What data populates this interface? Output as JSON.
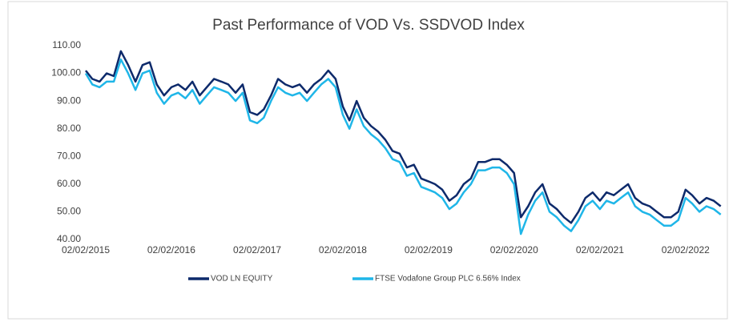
{
  "chart_data": {
    "type": "line",
    "title": "Past Performance of VOD Vs. SSDVOD Index",
    "x": [
      "2015-02-02",
      "2015-03-02",
      "2015-04-02",
      "2015-05-02",
      "2015-06-02",
      "2015-07-02",
      "2015-08-02",
      "2015-09-02",
      "2015-10-02",
      "2015-11-02",
      "2015-12-02",
      "2016-01-02",
      "2016-02-02",
      "2016-03-02",
      "2016-04-02",
      "2016-05-02",
      "2016-06-02",
      "2016-07-02",
      "2016-08-02",
      "2016-09-02",
      "2016-10-02",
      "2016-11-02",
      "2016-12-02",
      "2017-01-02",
      "2017-02-02",
      "2017-03-02",
      "2017-04-02",
      "2017-05-02",
      "2017-06-02",
      "2017-07-02",
      "2017-08-02",
      "2017-09-02",
      "2017-10-02",
      "2017-11-02",
      "2017-12-02",
      "2018-01-02",
      "2018-02-02",
      "2018-03-02",
      "2018-04-02",
      "2018-05-02",
      "2018-06-02",
      "2018-07-02",
      "2018-08-02",
      "2018-09-02",
      "2018-10-02",
      "2018-11-02",
      "2018-12-02",
      "2019-01-02",
      "2019-02-02",
      "2019-03-02",
      "2019-04-02",
      "2019-05-02",
      "2019-06-02",
      "2019-07-02",
      "2019-08-02",
      "2019-09-02",
      "2019-10-02",
      "2019-11-02",
      "2019-12-02",
      "2020-01-02",
      "2020-02-02",
      "2020-03-02",
      "2020-04-02",
      "2020-05-02",
      "2020-06-02",
      "2020-07-02",
      "2020-08-02",
      "2020-09-02",
      "2020-10-02",
      "2020-11-02",
      "2020-12-02",
      "2021-01-02",
      "2021-02-02",
      "2021-03-02",
      "2021-04-02",
      "2021-05-02",
      "2021-06-02",
      "2021-07-02",
      "2021-08-02",
      "2021-09-02",
      "2021-10-02",
      "2021-11-02",
      "2021-12-02",
      "2022-01-02",
      "2022-02-02",
      "2022-03-02",
      "2022-04-02",
      "2022-05-02",
      "2022-06-02",
      "2022-07-02"
    ],
    "series": [
      {
        "name": "VOD LN EQUITY",
        "color": "#0d2a6b",
        "values": [
          101,
          98,
          97,
          100,
          99,
          108,
          103,
          97,
          103,
          104,
          96,
          92,
          95,
          96,
          94,
          97,
          92,
          95,
          98,
          97,
          96,
          93,
          96,
          86,
          85,
          87,
          92,
          98,
          96,
          95,
          96,
          93,
          96,
          98,
          101,
          98,
          88,
          83,
          90,
          84,
          81,
          79,
          76,
          72,
          71,
          66,
          67,
          62,
          61,
          60,
          58,
          54,
          56,
          60,
          62,
          68,
          68,
          69,
          69,
          67,
          64,
          48,
          52,
          57,
          60,
          53,
          51,
          48,
          46,
          50,
          55,
          57,
          54,
          57,
          56,
          58,
          60,
          55,
          53,
          52,
          50,
          48,
          48,
          50,
          58,
          56,
          53,
          55,
          54,
          52
        ]
      },
      {
        "name": "FTSE Vodafone Group PLC 6.56% Index",
        "color": "#1fb6e8",
        "values": [
          100,
          96,
          95,
          97,
          97,
          105,
          100,
          94,
          100,
          101,
          93,
          89,
          92,
          93,
          91,
          94,
          89,
          92,
          95,
          94,
          93,
          90,
          93,
          83,
          82,
          84,
          90,
          95,
          93,
          92,
          93,
          90,
          93,
          96,
          98,
          95,
          85,
          80,
          87,
          81,
          78,
          76,
          73,
          69,
          68,
          63,
          64,
          59,
          58,
          57,
          55,
          51,
          53,
          57,
          60,
          65,
          65,
          66,
          66,
          64,
          60,
          42,
          49,
          54,
          57,
          50,
          48,
          45,
          43,
          47,
          52,
          54,
          51,
          54,
          53,
          55,
          57,
          52,
          50,
          49,
          47,
          45,
          45,
          47,
          55,
          53,
          50,
          52,
          51,
          49
        ]
      }
    ],
    "xlim": [
      "2015-02-02",
      "2022-07-20"
    ],
    "xticks": [
      {
        "value": "2015-02-02",
        "label": "02/02/2015"
      },
      {
        "value": "2016-02-02",
        "label": "02/02/2016"
      },
      {
        "value": "2017-02-02",
        "label": "02/02/2017"
      },
      {
        "value": "2018-02-02",
        "label": "02/02/2018"
      },
      {
        "value": "2019-02-02",
        "label": "02/02/2019"
      },
      {
        "value": "2020-02-02",
        "label": "02/02/2020"
      },
      {
        "value": "2021-02-02",
        "label": "02/02/2021"
      },
      {
        "value": "2022-02-02",
        "label": "02/02/2022"
      }
    ],
    "ylim": [
      40,
      110
    ],
    "yticks": [
      {
        "value": 40,
        "label": "40.00"
      },
      {
        "value": 50,
        "label": "50.00"
      },
      {
        "value": 60,
        "label": "60.00"
      },
      {
        "value": 70,
        "label": "70.00"
      },
      {
        "value": 80,
        "label": "80.00"
      },
      {
        "value": 90,
        "label": "90.00"
      },
      {
        "value": 100,
        "label": "100.00"
      },
      {
        "value": 110,
        "label": "110.00"
      }
    ],
    "legend": "bottom"
  }
}
